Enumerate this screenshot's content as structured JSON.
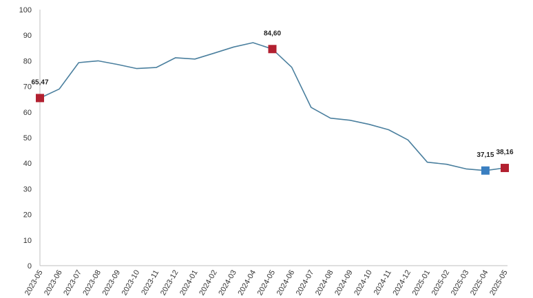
{
  "chart_data": {
    "type": "line",
    "title": "",
    "xlabel": "",
    "ylabel": "",
    "ylim": [
      0,
      100
    ],
    "yticks": [
      0,
      10,
      20,
      30,
      40,
      50,
      60,
      70,
      80,
      90,
      100
    ],
    "grid": false,
    "line_color": "#4a7f9e",
    "marker_red": "#b22030",
    "marker_blue": "#3a7fc1",
    "categories": [
      "2023-05",
      "2023-06",
      "2023-07",
      "2023-08",
      "2023-09",
      "2023-10",
      "2023-11",
      "2023-12",
      "2024-01",
      "2024-02",
      "2024-03",
      "2024-04",
      "2024-05",
      "2024-06",
      "2024-07",
      "2024-08",
      "2024-09",
      "2024-10",
      "2024-11",
      "2024-12",
      "2025-01",
      "2025-02",
      "2025-03",
      "2025-04",
      "2025-05"
    ],
    "series": [
      {
        "values": [
          65.47,
          69.0,
          79.3,
          80.0,
          78.6,
          77.0,
          77.4,
          81.2,
          80.7,
          83.0,
          85.4,
          87.1,
          84.6,
          77.5,
          61.8,
          57.6,
          56.8,
          55.2,
          53.1,
          49.1,
          40.4,
          39.6,
          37.8,
          37.15,
          38.16
        ]
      }
    ],
    "markers": [
      {
        "index": 0,
        "label": "65,47",
        "color": "red"
      },
      {
        "index": 12,
        "label": "84,60",
        "color": "red"
      },
      {
        "index": 23,
        "label": "37,15",
        "color": "blue"
      },
      {
        "index": 24,
        "label": "38,16",
        "color": "red"
      }
    ]
  }
}
